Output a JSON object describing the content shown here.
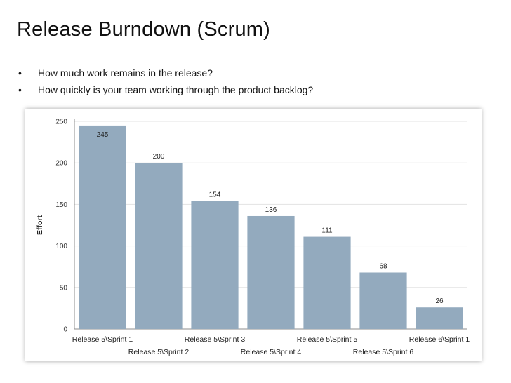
{
  "slide": {
    "title": "Release Burndown (Scrum)",
    "bullets": [
      "How much work remains in the release?",
      "How quickly is your team working through the product backlog?"
    ],
    "bullet_glyph": "•"
  },
  "chart_data": {
    "type": "bar",
    "title": "",
    "xlabel": "",
    "ylabel": "Effort",
    "ylim": [
      0,
      250
    ],
    "yticks": [
      0,
      50,
      100,
      150,
      200,
      250
    ],
    "grid": true,
    "bar_color": "#93aabe",
    "categories": [
      "Release 5\\Sprint 1",
      "Release 5\\Sprint 2",
      "Release 5\\Sprint 3",
      "Release 5\\Sprint 4",
      "Release 5\\Sprint 5",
      "Release 5\\Sprint 6",
      "Release 6\\Sprint 1"
    ],
    "values": [
      245,
      200,
      154,
      136,
      111,
      68,
      26
    ]
  }
}
